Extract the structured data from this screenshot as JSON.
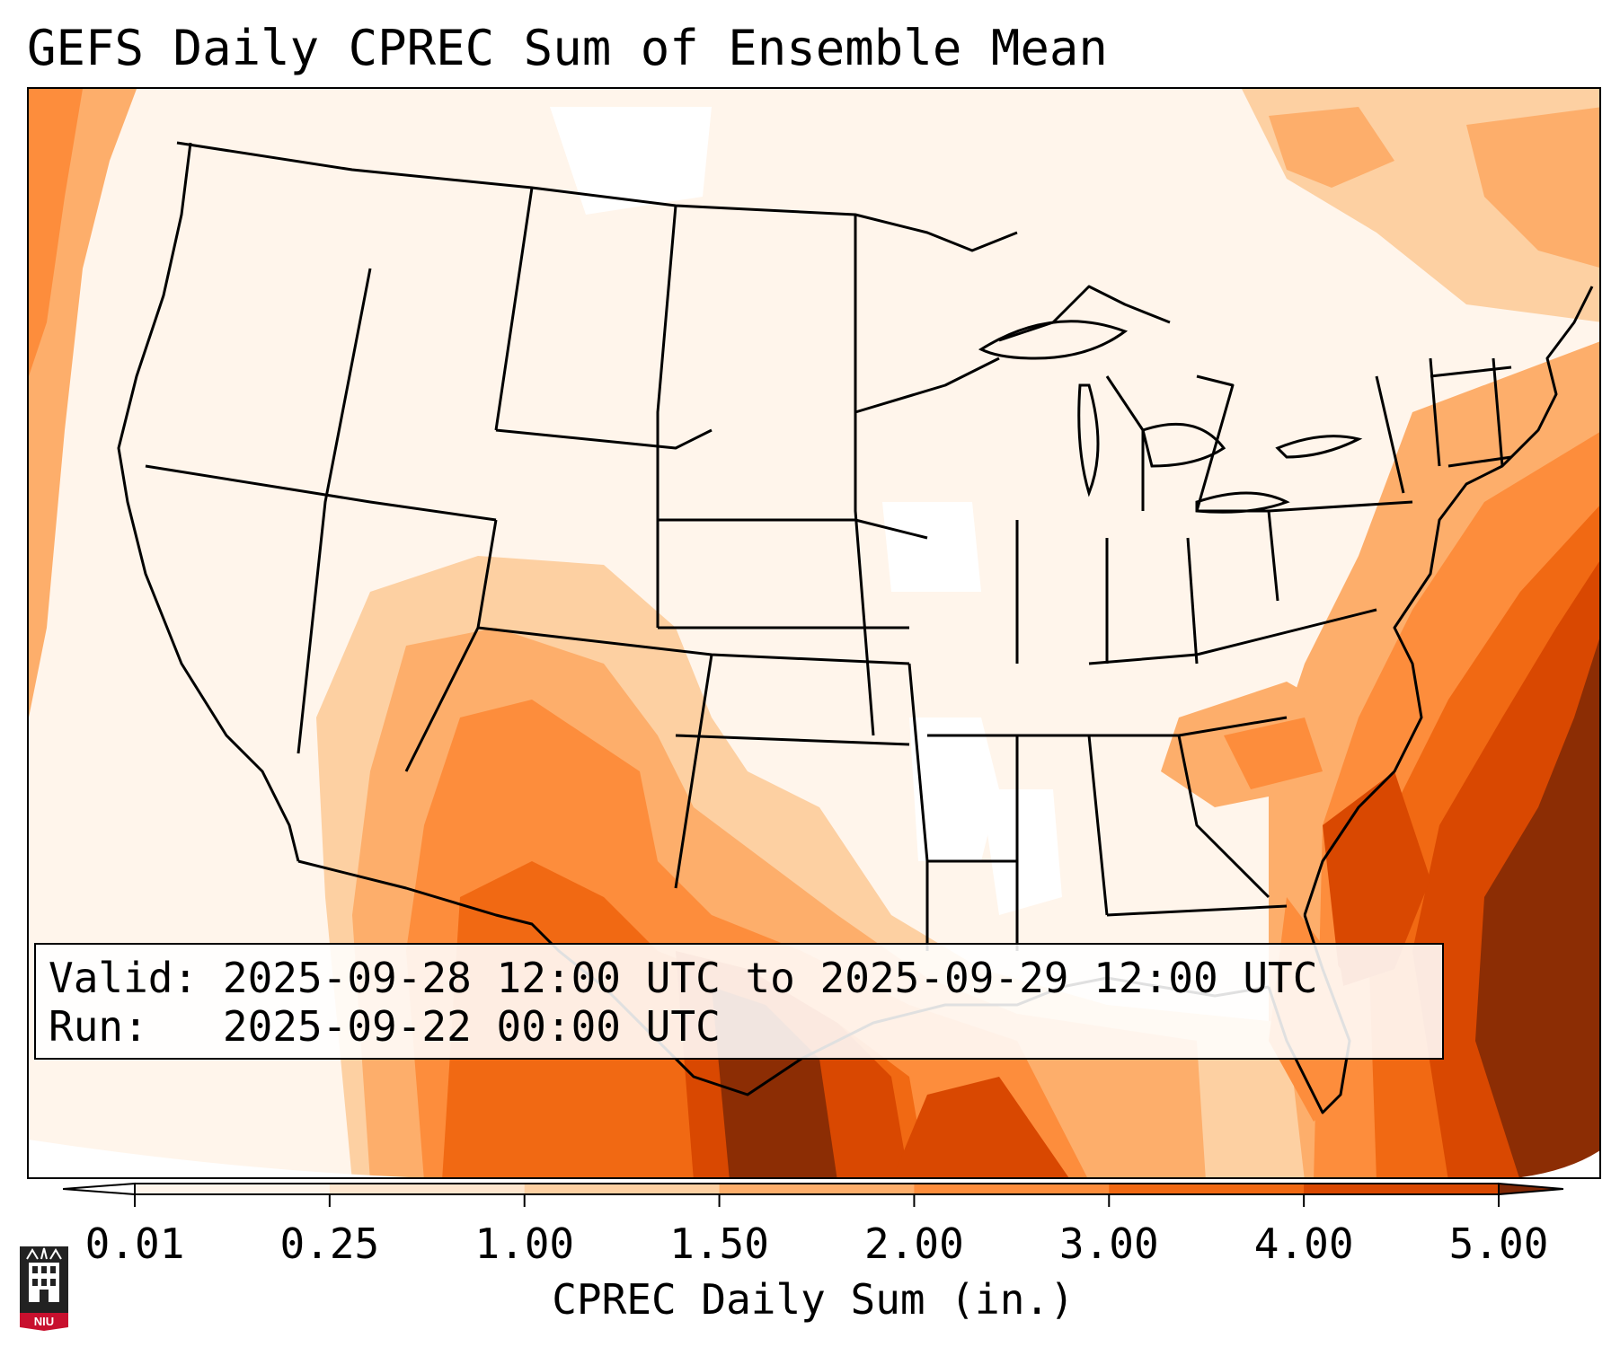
{
  "title": "GEFS Daily CPREC Sum of Ensemble Mean",
  "info": {
    "valid_label": "Valid:",
    "valid_value": "2025-09-28 12:00 UTC to 2025-09-29 12:00 UTC",
    "run_label": "Run:",
    "run_value": "2025-09-22 00:00 UTC"
  },
  "colorbar": {
    "label": "CPREC Daily Sum (in.)",
    "ticks": [
      "0.01",
      "0.25",
      "1.00",
      "1.50",
      "2.00",
      "3.00",
      "4.00",
      "5.00"
    ],
    "colors": [
      "#fff5eb",
      "#fee6ce",
      "#fdd0a2",
      "#fdae6b",
      "#fd8d3c",
      "#f16913",
      "#d94801",
      "#8c2d04"
    ],
    "under_color": "#ffffff",
    "over_color": "#7f2704",
    "extend": "both"
  },
  "map": {
    "projection": "Lambert conformal",
    "region": "CONUS",
    "land_outline_color": "#000000"
  },
  "logo": {
    "text": "NIU",
    "icon": "university-tower-icon",
    "color": "#c8102e"
  }
}
